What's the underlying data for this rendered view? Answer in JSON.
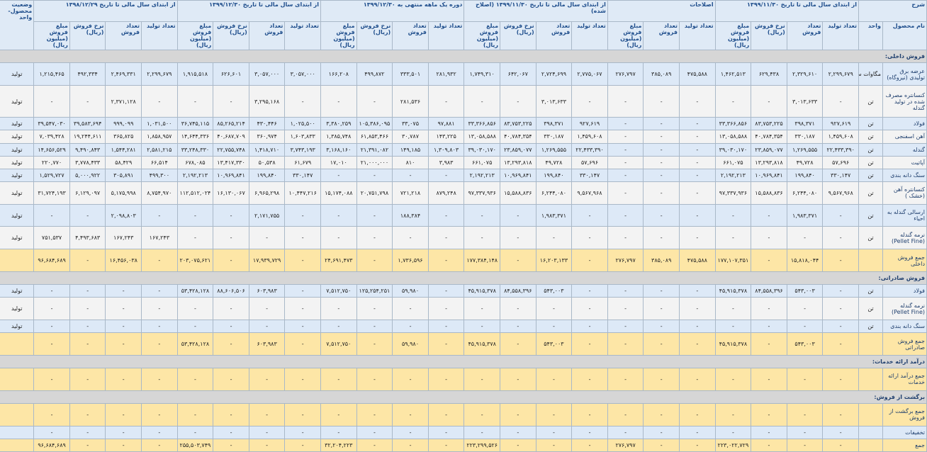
{
  "header": {
    "description": "شرح",
    "description_columns": [
      "نام محصول",
      "واحد"
    ],
    "groups": [
      {
        "title": "از ابتدای سال مالی تا تاریخ ۱۳۹۹/۱۱/۳۰",
        "columns": [
          "تعداد تولید",
          "تعداد فروش",
          "نرخ فروش (ریال)",
          "مبلغ فروش (میلیون ریال)"
        ]
      },
      {
        "title": "اصلاحات",
        "columns": [
          "تعداد تولید",
          "تعداد فروش",
          "مبلغ فروش (میلیون ریال)"
        ]
      },
      {
        "title": "از ابتدای سال مالی تا تاریخ ۱۳۹۹/۱۱/۳۰ (اصلاح شده)",
        "columns": [
          "تعداد تولید",
          "تعداد فروش",
          "نرخ فروش (ریال)",
          "مبلغ فروش (میلیون ریال)"
        ]
      },
      {
        "title": "دوره یک ماهه منتهی به ۱۳۹۹/۱۲/۳۰",
        "columns": [
          "تعداد تولید",
          "تعداد فروش",
          "نرخ فروش (ریال)",
          "مبلغ فروش (میلیون ریال)"
        ]
      },
      {
        "title": "از ابتدای سال مالی تا تاریخ ۱۳۹۹/۱۲/۳۰",
        "columns": [
          "تعداد تولید",
          "تعداد فروش",
          "نرخ فروش (ریال)",
          "مبلغ فروش (میلیون ریال)"
        ]
      },
      {
        "title": "از ابتدای سال مالی تا تاریخ ۱۳۹۸/۱۲/۲۹",
        "columns": [
          "تعداد تولید",
          "تعداد فروش",
          "نرخ فروش (ریال)",
          "مبلغ فروش (میلیون ریال)"
        ]
      }
    ],
    "status": "وضعیت محصول-واحد"
  },
  "rows": [
    [
      "فروش داخلی:"
    ],
    [
      "عرضه برق تولیدی (نیروگاه)",
      "مگاوات ساعت",
      "۲,۲۹۹,۶۷۹",
      "۲,۳۲۹,۶۱۰",
      "۶۲۹,۴۳۸",
      "۱,۴۶۲,۵۱۳",
      "۴۷۵,۵۸۸",
      "۳۸۵,۰۸۹",
      "۲۷۶,۷۹۷",
      "۲,۷۷۵,۰۶۷",
      "۲,۷۲۴,۶۹۹",
      "۶۴۲,۰۶۷",
      "۱,۷۴۹,۳۱۰",
      "۲۸۱,۹۳۲",
      "۳۳۳,۵۰۱",
      "۴۹۹,۸۷۲",
      "۱۶۶,۲۰۸",
      "۳,۰۵۷,۰۰۰",
      "۳,۰۵۷,۰۰۰",
      "۶۲۶,۶۰۱",
      "۱,۹۱۵,۵۱۸",
      "۲,۲۹۹,۶۷۹",
      "۲,۴۶۹,۳۳۱",
      "۴۹۲,۳۳۴",
      "۱,۲۱۵,۴۶۵",
      "تولید"
    ],
    [
      "کنسانتره مصرف شده در تولید گندله",
      "تن",
      "-",
      "۳,۰۱۳,۶۳۳",
      "-",
      "-",
      "-",
      "-",
      "-",
      "-",
      "۳,۰۱۳,۶۳۳",
      "-",
      "-",
      "-",
      "۲۸۱,۵۳۶",
      "-",
      "-",
      "-",
      "۳,۲۹۵,۱۶۸",
      "-",
      "-",
      "-",
      "۲,۳۷۱,۱۲۸",
      "-",
      "-",
      "تولید"
    ],
    [
      "فولاد",
      "تن",
      "۹۲۷,۶۱۹",
      "۳۹۸,۳۷۱",
      "۸۳,۷۵۳,۲۲۵",
      "۳۳,۳۶۶,۸۵۶",
      "-",
      "-",
      "-",
      "۹۲۷,۶۱۹",
      "۳۹۸,۳۷۱",
      "۸۳,۷۵۳,۲۲۵",
      "۳۳,۳۶۶,۸۵۶",
      "۹۷,۸۸۱",
      "۳۳,۰۷۵",
      "۱۰۵,۳۸۶,۰۹۵",
      "۳,۳۸۰,۲۵۹",
      "۱,۰۲۵,۵۰۰",
      "۴۳۰,۴۴۶",
      "۸۵,۲۶۵,۲۱۴",
      "۳۶,۷۴۵,۱۱۵",
      "۱,۰۳۱,۵۰۰",
      "۹۹۹,۰۹۹",
      "۳۹,۵۸۳,۶۹۴",
      "۳۹,۵۴۷,۰۳۰",
      "تولید"
    ],
    [
      "آهن اسفنجی",
      "تن",
      "۱,۴۵۹,۶۰۸",
      "۳۳۰,۱۸۷",
      "۴۰,۷۸۴,۳۵۴",
      "۱۳,۰۵۸,۵۸۸",
      "-",
      "-",
      "-",
      "۱,۴۵۹,۶۰۸",
      "۳۳۰,۱۸۷",
      "۴۰,۷۸۴,۳۵۴",
      "۱۳,۰۵۸,۵۸۸",
      "۱۴۳,۲۲۵",
      "۳۰,۷۸۷",
      "۶۱,۸۵۳,۴۶۶",
      "۱,۳۸۵,۷۴۸",
      "۱,۶۰۳,۸۳۳",
      "۳۶۰,۹۷۴",
      "۴۰,۶۸۷,۷۰۹",
      "۱۴,۶۴۴,۳۳۶",
      "۱,۸۵۸,۹۵۷",
      "۳۶۵,۸۲۵",
      "۱۹,۲۴۴,۶۱۱",
      "۷,۰۳۹,۴۲۸",
      "تولید"
    ],
    [
      "گندله",
      "تن",
      "۲۲,۴۳۳,۳۹۰",
      "۱,۲۶۹,۵۵۵",
      "۲۳,۸۵۹,۰۷۷",
      "۳۹,۰۳۰,۱۷۰",
      "-",
      "-",
      "-",
      "۲۲,۴۳۳,۳۹۰",
      "۱,۲۶۹,۵۵۵",
      "۲۳,۸۵۹,۰۷۷",
      "۳۹,۰۳۰,۱۷۰",
      "۱,۳۰۹,۸۰۳",
      "۱۴۹,۱۸۵",
      "۲۱,۳۹۱,۰۸۲",
      "۳,۱۶۸,۱۶۰",
      "۳,۷۴۳,۱۹۳",
      "۱,۴۱۸,۷۱۰",
      "۲۲,۷۵۵,۷۴۸",
      "۳۳,۲۴۸,۳۳۰",
      "۲,۵۸۱,۲۱۵",
      "۱,۵۴۴,۲۸۱",
      "۹,۴۹۰,۸۴۳",
      "۱۴,۶۵۶,۵۲۹",
      "تولید"
    ],
    [
      "آپاتیت",
      "تن",
      "۵۷,۶۹۶",
      "۴۹,۷۲۸",
      "۱۳,۲۹۳,۸۱۸",
      "۶۶۱,۰۷۵",
      "-",
      "-",
      "-",
      "۵۷,۶۹۶",
      "۴۹,۷۲۸",
      "۱۳,۲۹۳,۸۱۸",
      "۶۶۱,۰۷۵",
      "۳,۹۸۳",
      "۸۱۰",
      "۲۱,۰۰۰,۰۰۰",
      "۱۷,۰۱۰",
      "۶۱,۶۷۹",
      "۵۰,۵۳۸",
      "۱۳,۴۱۷,۳۳۰",
      "۶۷۸,۰۸۵",
      "۶۶,۵۱۴",
      "۵۸,۴۲۹",
      "۳,۷۷۸,۴۳۳",
      "۲۲۰,۷۷۰",
      "تولید"
    ],
    [
      "سنگ دانه بندی",
      "تن",
      "۳۳۰,۱۴۷",
      "۱۹۹,۸۴۰",
      "۱۰,۹۶۹,۸۴۱",
      "۲,۱۹۲,۲۱۳",
      "-",
      "-",
      "-",
      "۳۳۰,۱۴۷",
      "۱۹۹,۸۴۰",
      "۱۰,۹۶۹,۸۴۱",
      "۲,۱۹۲,۲۱۳",
      "-",
      "-",
      "-",
      "-",
      "۳۳۰,۱۴۷",
      "۱۹۹,۸۴۰",
      "۱۰,۹۶۹,۸۴۱",
      "۲,۱۹۲,۲۱۳",
      "۴۹۹,۳۰۰",
      "۳۰۵,۸۹۱",
      "۵,۰۰۰,۹۲۲",
      "۱,۵۲۹,۷۲۷",
      "تولید"
    ],
    [
      "کنسانتره آهن (خشک )",
      "تن",
      "۹,۵۶۷,۹۶۸",
      "۶,۲۴۴,۰۸۰",
      "۱۵,۵۸۸,۸۳۶",
      "۹۷,۳۳۷,۹۳۶",
      "-",
      "-",
      "-",
      "۹,۵۶۷,۹۶۸",
      "۶,۲۴۴,۰۸۰",
      "۱۵,۵۸۸,۸۳۶",
      "۹۷,۳۳۷,۹۳۶",
      "۸۷۹,۲۴۸",
      "۷۲۱,۲۱۸",
      "۲۰,۷۵۱,۷۹۸",
      "۱۵,۱۷۴,۰۸۸",
      "۱۰,۴۴۷,۲۱۶",
      "۶,۹۶۵,۲۹۸",
      "۱۶,۱۳۰,۰۶۷",
      "۱۱۲,۵۱۲,۰۲۴",
      "۸,۷۵۴,۹۷۰",
      "۵,۱۷۵,۹۹۸",
      "۶,۱۲۹,۰۹۷",
      "۳۱,۷۲۴,۱۹۳",
      "تولید"
    ],
    [
      "ارسالی گندله به احیاء",
      "تن",
      "-",
      "۱,۹۸۳,۳۷۱",
      "-",
      "-",
      "-",
      "-",
      "-",
      "-",
      "۱,۹۸۳,۳۷۱",
      "-",
      "-",
      "-",
      "۱۸۸,۳۸۴",
      "-",
      "-",
      "-",
      "۲,۱۷۱,۷۵۵",
      "-",
      "-",
      "-",
      "۲,۰۹۸,۸۰۳",
      "-",
      "-",
      "تولید"
    ],
    [
      "نرمه گندله (Pellet Fine)",
      "تن",
      "-",
      "-",
      "-",
      "-",
      "-",
      "-",
      "-",
      "-",
      "-",
      "-",
      "-",
      "-",
      "-",
      "-",
      "-",
      "-",
      "-",
      "-",
      "-",
      "۱۶۷,۲۴۳",
      "۱۶۷,۲۴۳",
      "۴,۴۹۳,۶۸۳",
      "۷۵۱,۵۳۷",
      "تولید"
    ],
    [
      "جمع فروش داخلی",
      "",
      "-",
      "۱۵,۸۱۸,۰۴۴",
      "-",
      "۱۷۷,۱۰۷,۳۵۱",
      "۴۷۵,۵۸۸",
      "۳۸۵,۰۸۹",
      "۲۷۶,۷۹۷",
      "-",
      "۱۶,۲۰۳,۱۳۳",
      "-",
      "۱۷۷,۳۸۴,۱۴۸",
      "-",
      "۱,۷۳۶,۵۹۶",
      "-",
      "۲۴,۶۹۱,۴۷۳",
      "-",
      "۱۷,۹۳۹,۷۲۹",
      "-",
      "۲۰۳,۰۷۵,۶۲۱",
      "-",
      "۱۶,۴۵۶,۰۳۸",
      "-",
      "۹۶,۶۸۴,۶۸۹",
      ""
    ],
    [
      "فروش صادراتی:"
    ],
    [
      "فولاد",
      "تن",
      "-",
      "۵۴۳,۰۰۳",
      "۸۴,۵۵۸,۳۹۶",
      "۴۵,۹۱۵,۳۷۸",
      "-",
      "-",
      "-",
      "-",
      "۵۴۳,۰۰۳",
      "۸۴,۵۵۸,۳۹۶",
      "۴۵,۹۱۵,۳۷۸",
      "-",
      "۵۹,۹۸۰",
      "۱۲۵,۲۵۴,۲۵۱",
      "۷,۵۱۲,۷۵۰",
      "-",
      "۶۰۳,۹۸۳",
      "۸۸,۶۰۶,۵۰۶",
      "۵۳,۴۲۸,۱۲۸",
      "-",
      "-",
      "-",
      "-",
      "تولید"
    ],
    [
      "نرمه گندله (Pellet Fine)",
      "تن",
      "-",
      "-",
      "-",
      "-",
      "-",
      "-",
      "-",
      "-",
      "-",
      "-",
      "-",
      "-",
      "-",
      "-",
      "-",
      "-",
      "-",
      "-",
      "-",
      "-",
      "-",
      "-",
      "-",
      "تولید"
    ],
    [
      "سنگ دانه بندی",
      "تن",
      "-",
      "-",
      "-",
      "-",
      "-",
      "-",
      "-",
      "-",
      "-",
      "-",
      "-",
      "-",
      "-",
      "-",
      "-",
      "-",
      "-",
      "-",
      "-",
      "-",
      "-",
      "-",
      "-",
      "تولید"
    ],
    [
      "جمع فروش صادراتی",
      "",
      "-",
      "۵۴۳,۰۰۳",
      "-",
      "۴۵,۹۱۵,۳۷۸",
      "-",
      "-",
      "-",
      "-",
      "۵۴۳,۰۰۳",
      "-",
      "۴۵,۹۱۵,۳۷۸",
      "-",
      "۵۹,۹۸۰",
      "-",
      "۷,۵۱۲,۷۵۰",
      "-",
      "۶۰۳,۹۸۳",
      "-",
      "۵۳,۴۲۸,۱۲۸",
      "-",
      "-",
      "-",
      "-",
      ""
    ],
    [
      "درآمد ارائه خدمات:"
    ],
    [
      "جمع درآمد ارائه خدمات",
      "",
      "-",
      "-",
      "-",
      "-",
      "-",
      "-",
      "-",
      "-",
      "-",
      "-",
      "-",
      "-",
      "-",
      "-",
      "-",
      "-",
      "-",
      "-",
      "-",
      "-",
      "-",
      "-",
      "-",
      ""
    ],
    [
      "برگشت از فروش:"
    ],
    [
      "جمع برگشت از فروش",
      "",
      "-",
      "-",
      "-",
      "-",
      "-",
      "-",
      "-",
      "-",
      "-",
      "-",
      "-",
      "-",
      "-",
      "-",
      "-",
      "-",
      "-",
      "-",
      "-",
      "-",
      "-",
      "-",
      "-",
      ""
    ],
    [
      "تخفیفات",
      "",
      "-",
      "-",
      "-",
      "-",
      "-",
      "-",
      "-",
      "-",
      "-",
      "-",
      "-",
      "-",
      "-",
      "-",
      "-",
      "-",
      "-",
      "-",
      "-",
      "-",
      "-",
      "-",
      "-",
      ""
    ],
    [
      "جمع",
      "",
      "-",
      "-",
      "-",
      "۲۲۳,۰۲۲,۷۲۹",
      "-",
      "-",
      "۲۷۶,۷۹۷",
      "-",
      "-",
      "-",
      "۲۲۳,۲۹۹,۵۲۶",
      "-",
      "-",
      "-",
      "۳۲,۲۰۴,۲۲۳",
      "-",
      "-",
      "-",
      "۲۵۵,۵۰۳,۷۴۹",
      "-",
      "-",
      "-",
      "۹۶,۶۸۴,۶۸۹",
      ""
    ]
  ]
}
